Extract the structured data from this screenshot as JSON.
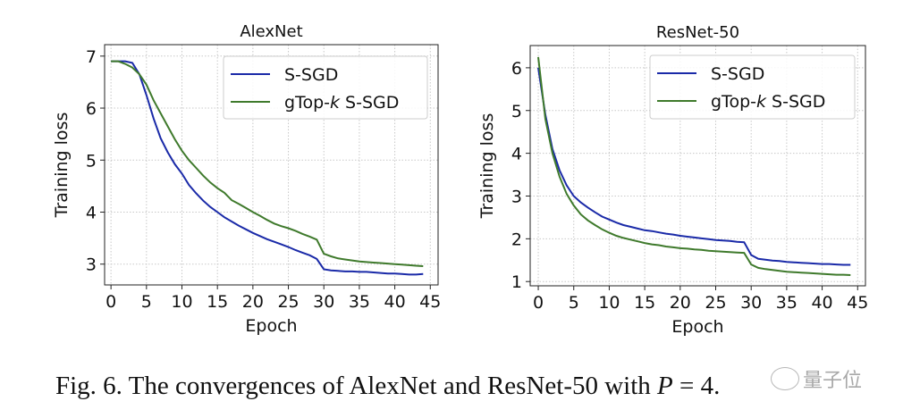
{
  "chart_data": [
    {
      "type": "line",
      "title": "AlexNet",
      "xlabel": "Epoch",
      "ylabel": "Training loss",
      "xlim": [
        -0.9,
        46.1
      ],
      "ylim": [
        2.6,
        7.22
      ],
      "xticks": [
        0,
        5,
        10,
        15,
        20,
        25,
        30,
        35,
        40,
        45
      ],
      "yticks": [
        3,
        4,
        5,
        6,
        7
      ],
      "grid": true,
      "legend_position": "top-right",
      "series": [
        {
          "name": "S-SGD",
          "color": "#1a2aa8",
          "values": [
            6.9,
            6.9,
            6.9,
            6.87,
            6.65,
            6.25,
            5.8,
            5.42,
            5.15,
            4.92,
            4.74,
            4.52,
            4.36,
            4.22,
            4.1,
            4.0,
            3.9,
            3.82,
            3.74,
            3.67,
            3.6,
            3.54,
            3.48,
            3.43,
            3.38,
            3.33,
            3.27,
            3.22,
            3.17,
            3.1,
            2.9,
            2.88,
            2.87,
            2.86,
            2.86,
            2.85,
            2.85,
            2.84,
            2.83,
            2.82,
            2.82,
            2.81,
            2.8,
            2.8,
            2.81
          ]
        },
        {
          "name": "gTop-k S-SGD",
          "color": "#3f7a2c",
          "values": [
            6.9,
            6.9,
            6.85,
            6.78,
            6.65,
            6.45,
            6.15,
            5.9,
            5.65,
            5.4,
            5.18,
            5.0,
            4.85,
            4.7,
            4.57,
            4.46,
            4.37,
            4.23,
            4.16,
            4.08,
            4.0,
            3.93,
            3.85,
            3.78,
            3.73,
            3.69,
            3.64,
            3.58,
            3.53,
            3.47,
            3.2,
            3.15,
            3.11,
            3.09,
            3.07,
            3.05,
            3.04,
            3.03,
            3.02,
            3.01,
            3.0,
            2.99,
            2.98,
            2.97,
            2.96
          ]
        }
      ]
    },
    {
      "type": "line",
      "title": "ResNet-50",
      "xlabel": "Epoch",
      "ylabel": "Training loss",
      "xlim": [
        -1.14,
        46.1
      ],
      "ylim": [
        0.9,
        6.52
      ],
      "xticks": [
        0,
        5,
        10,
        15,
        20,
        25,
        30,
        35,
        40,
        45
      ],
      "yticks": [
        1,
        2,
        3,
        4,
        5,
        6
      ],
      "grid": true,
      "legend_position": "top-right",
      "series": [
        {
          "name": "S-SGD",
          "color": "#1a2aa8",
          "values": [
            6.0,
            4.9,
            4.1,
            3.6,
            3.25,
            3.0,
            2.85,
            2.73,
            2.62,
            2.52,
            2.45,
            2.38,
            2.32,
            2.28,
            2.24,
            2.2,
            2.18,
            2.15,
            2.12,
            2.1,
            2.07,
            2.05,
            2.03,
            2.01,
            1.99,
            1.97,
            1.96,
            1.95,
            1.93,
            1.92,
            1.62,
            1.53,
            1.51,
            1.49,
            1.48,
            1.46,
            1.45,
            1.44,
            1.43,
            1.42,
            1.41,
            1.41,
            1.4,
            1.39,
            1.39
          ]
        },
        {
          "name": "gTop-k S-SGD",
          "color": "#3f7a2c",
          "values": [
            6.25,
            4.8,
            4.0,
            3.45,
            3.05,
            2.78,
            2.57,
            2.43,
            2.32,
            2.22,
            2.14,
            2.07,
            2.02,
            1.98,
            1.94,
            1.9,
            1.87,
            1.85,
            1.82,
            1.8,
            1.78,
            1.77,
            1.75,
            1.74,
            1.72,
            1.71,
            1.7,
            1.69,
            1.68,
            1.67,
            1.4,
            1.32,
            1.29,
            1.27,
            1.25,
            1.23,
            1.22,
            1.21,
            1.2,
            1.19,
            1.18,
            1.17,
            1.16,
            1.16,
            1.15
          ]
        }
      ]
    }
  ],
  "caption": {
    "prefix": "Fig. 6.  The convergences of AlexNet and ResNet-50 with ",
    "var": "P",
    "suffix": " = 4."
  },
  "watermark": "量子位"
}
